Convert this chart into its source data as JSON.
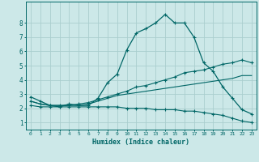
{
  "xlabel": "Humidex (Indice chaleur)",
  "bg_color": "#cce8e8",
  "line_color": "#006666",
  "grid_color": "#aacece",
  "xlim": [
    -0.5,
    23.5
  ],
  "ylim": [
    0.5,
    9.5
  ],
  "xticks": [
    0,
    1,
    2,
    3,
    4,
    5,
    6,
    7,
    8,
    9,
    10,
    11,
    12,
    13,
    14,
    15,
    16,
    17,
    18,
    19,
    20,
    21,
    22,
    23
  ],
  "yticks": [
    1,
    2,
    3,
    4,
    5,
    6,
    7,
    8
  ],
  "curve1_x": [
    0,
    1,
    2,
    3,
    4,
    5,
    6,
    7,
    8,
    9,
    10,
    11,
    12,
    13,
    14,
    15,
    16,
    17,
    18,
    19,
    20,
    21,
    22,
    23
  ],
  "curve1_y": [
    2.8,
    2.5,
    2.2,
    2.1,
    2.3,
    2.2,
    2.2,
    2.7,
    3.8,
    4.4,
    6.1,
    7.3,
    7.6,
    8.0,
    8.6,
    8.0,
    8.0,
    7.0,
    5.2,
    4.6,
    3.5,
    2.7,
    1.9,
    1.6
  ],
  "curve2_x": [
    0,
    1,
    2,
    3,
    4,
    5,
    6,
    7,
    8,
    9,
    10,
    11,
    12,
    13,
    14,
    15,
    16,
    17,
    18,
    19,
    20,
    21,
    22,
    23
  ],
  "curve2_y": [
    2.5,
    2.3,
    2.2,
    2.2,
    2.2,
    2.3,
    2.4,
    2.6,
    2.8,
    3.0,
    3.2,
    3.5,
    3.6,
    3.8,
    4.0,
    4.2,
    4.5,
    4.6,
    4.7,
    4.9,
    5.1,
    5.2,
    5.4,
    5.2
  ],
  "curve3_x": [
    0,
    1,
    2,
    3,
    4,
    5,
    6,
    7,
    8,
    9,
    10,
    11,
    12,
    13,
    14,
    15,
    16,
    17,
    18,
    19,
    20,
    21,
    22,
    23
  ],
  "curve3_y": [
    2.5,
    2.3,
    2.2,
    2.2,
    2.2,
    2.2,
    2.3,
    2.5,
    2.7,
    2.9,
    3.0,
    3.1,
    3.2,
    3.3,
    3.4,
    3.5,
    3.6,
    3.7,
    3.8,
    3.9,
    4.0,
    4.1,
    4.3,
    4.3
  ],
  "curve4_x": [
    0,
    1,
    2,
    3,
    4,
    5,
    6,
    7,
    8,
    9,
    10,
    11,
    12,
    13,
    14,
    15,
    16,
    17,
    18,
    19,
    20,
    21,
    22,
    23
  ],
  "curve4_y": [
    2.2,
    2.1,
    2.1,
    2.1,
    2.1,
    2.1,
    2.1,
    2.1,
    2.1,
    2.1,
    2.0,
    2.0,
    2.0,
    1.9,
    1.9,
    1.9,
    1.8,
    1.8,
    1.7,
    1.6,
    1.5,
    1.3,
    1.1,
    1.0
  ]
}
